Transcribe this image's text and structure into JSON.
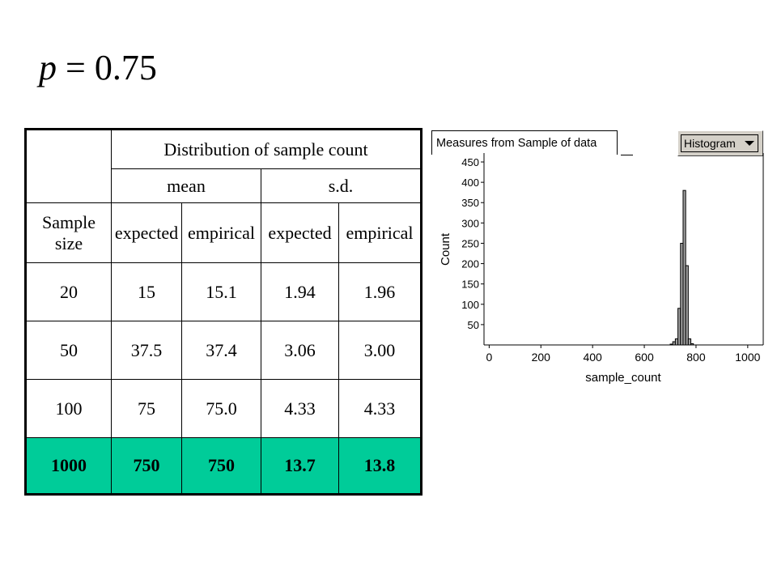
{
  "formula": {
    "var": "p",
    "rest": " = 0.75"
  },
  "table": {
    "group_header": "Distribution of sample count",
    "mean_label": "mean",
    "sd_label": "s.d.",
    "sample_size_label": "Sample size",
    "sub_headers": [
      "expected",
      "empirical",
      "expected",
      "empirical"
    ],
    "rows": [
      [
        "20",
        "15",
        "15.1",
        "1.94",
        "1.96"
      ],
      [
        "50",
        "37.5",
        "37.4",
        "3.06",
        "3.00"
      ],
      [
        "100",
        "75",
        "75.0",
        "4.33",
        "4.33"
      ],
      [
        "1000",
        "750",
        "750",
        "13.7",
        "13.8"
      ]
    ],
    "highlight_color": "#00cc99"
  },
  "panel": {
    "title": "Measures from Sample of data",
    "button_label": "Histogram"
  },
  "chart_data": {
    "type": "bar",
    "xlabel": "sample_count",
    "ylabel": "Count",
    "xlim": [
      -20,
      1060
    ],
    "ylim": [
      0,
      460
    ],
    "x_ticks": [
      0,
      200,
      400,
      600,
      800,
      1000
    ],
    "y_ticks": [
      50,
      100,
      150,
      200,
      250,
      300,
      350,
      400,
      450
    ],
    "bin_width": 10,
    "series": [
      {
        "bin_starts": [
          700,
          710,
          720,
          730,
          740,
          750,
          760,
          770,
          780
        ],
        "values": [
          2,
          8,
          15,
          90,
          250,
          380,
          195,
          15,
          3
        ]
      }
    ],
    "bar_fill": "#a0a0a0",
    "bar_stroke": "#000000",
    "grid": false
  }
}
